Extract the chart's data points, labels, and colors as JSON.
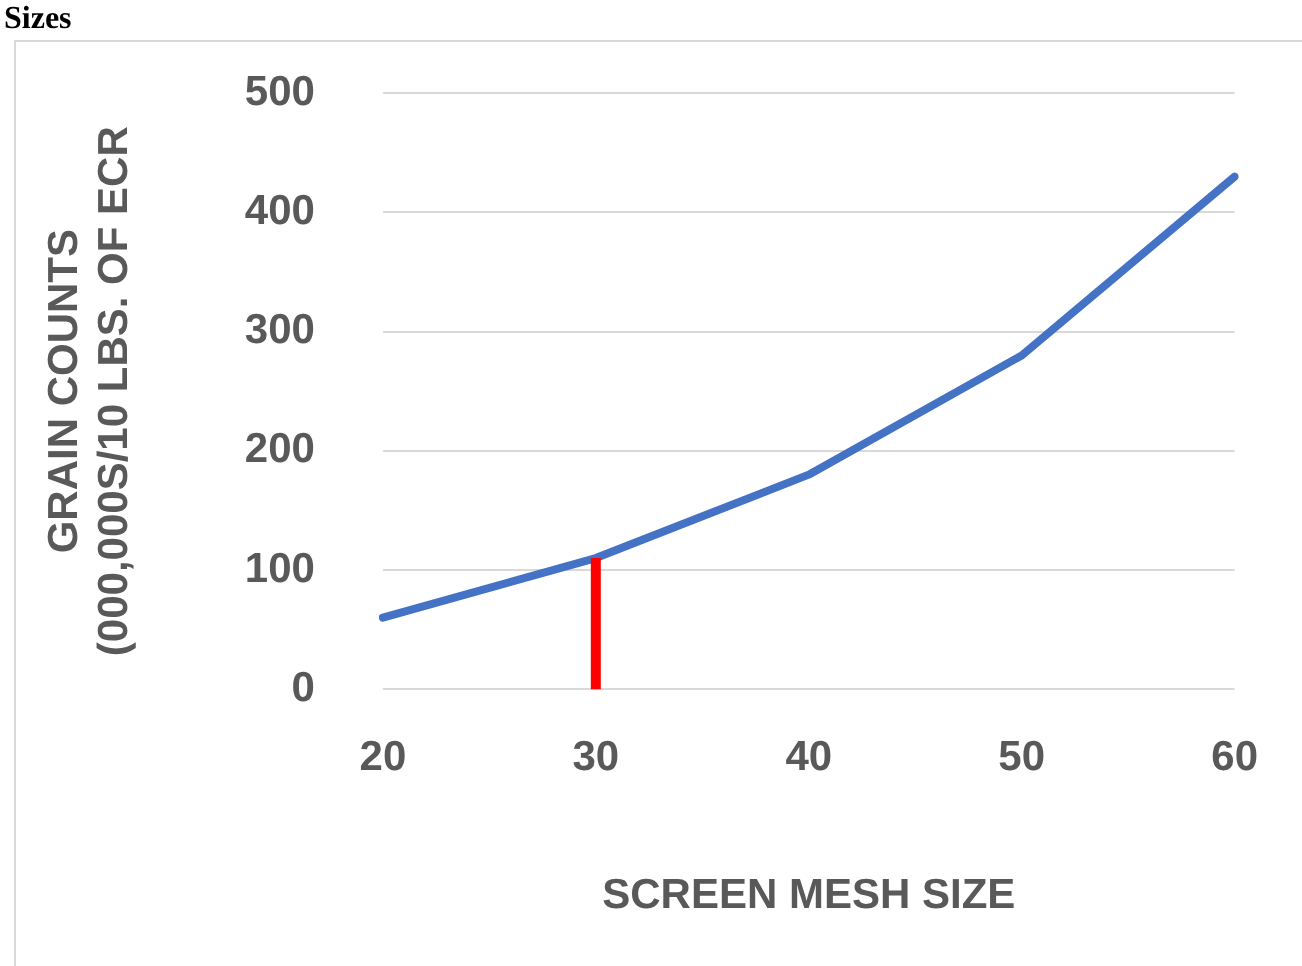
{
  "chart_data": {
    "type": "line",
    "title": "Sizes",
    "xlabel": "SCREEN MESH SIZE",
    "ylabel": "GRAIN COUNTS\n(000,000S/10 LBS. OF ECR",
    "categories": [
      "20",
      "30",
      "40",
      "50",
      "60"
    ],
    "series": [
      {
        "color": "#4472c4",
        "values": [
          60,
          110,
          180,
          280,
          430
        ]
      }
    ],
    "ylim": [
      0,
      500
    ],
    "yticks": [
      0,
      100,
      200,
      300,
      400,
      500
    ],
    "grid": "y",
    "legend": false,
    "marker": "none",
    "line_style": "solid",
    "ref_lines": [
      {
        "axis": "x",
        "value": "30",
        "color": "#ff0000"
      }
    ]
  }
}
